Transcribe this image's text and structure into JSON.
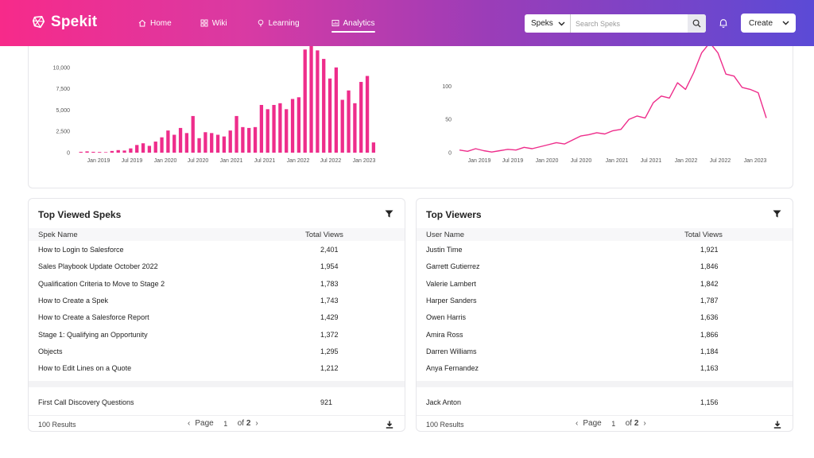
{
  "brand": {
    "name": "Spekit"
  },
  "nav": [
    {
      "label": "Home",
      "icon": "home-icon"
    },
    {
      "label": "Wiki",
      "icon": "grid-icon"
    },
    {
      "label": "Learning",
      "icon": "lightbulb-icon"
    },
    {
      "label": "Analytics",
      "icon": "analytics-icon",
      "active": true
    }
  ],
  "search": {
    "scope": "Speks",
    "placeholder": "Search Speks"
  },
  "create": {
    "label": "Create"
  },
  "colors": {
    "accent": "#ee2d8b",
    "grid": "#eeeeee",
    "axis": "#555555"
  },
  "chart_data": [
    {
      "type": "bar",
      "yticks": [
        "0",
        "2,500",
        "5,000",
        "7,500",
        "10,000"
      ],
      "ylim": [
        0,
        12500
      ],
      "xticks": [
        "Jan 2019",
        "Jul 2019",
        "Jan 2020",
        "Jul 2020",
        "Jan 2021",
        "Jul 2021",
        "Jan 2022",
        "Jul 2022",
        "Jan 2023"
      ],
      "values": [
        100,
        150,
        100,
        80,
        60,
        200,
        300,
        250,
        500,
        900,
        1100,
        800,
        1300,
        1800,
        2600,
        2100,
        2900,
        2300,
        4300,
        1700,
        2400,
        2300,
        2100,
        1900,
        2600,
        4300,
        3000,
        2900,
        3000,
        5600,
        5100,
        5600,
        5800,
        5100,
        6300,
        6500,
        12100,
        12500,
        12000,
        11000,
        8700,
        10000,
        6200,
        7300,
        5800,
        8300,
        9000,
        1200
      ]
    },
    {
      "type": "line",
      "yticks": [
        "0",
        "50",
        "100"
      ],
      "ylim": [
        0,
        160
      ],
      "xticks": [
        "Jan 2019",
        "Jul 2019",
        "Jan 2020",
        "Jul 2020",
        "Jan 2021",
        "Jul 2021",
        "Jan 2022",
        "Jul 2022",
        "Jan 2023"
      ],
      "values": [
        4,
        2,
        6,
        3,
        1,
        3,
        5,
        4,
        8,
        6,
        9,
        12,
        15,
        13,
        19,
        25,
        27,
        30,
        28,
        33,
        35,
        50,
        55,
        52,
        75,
        85,
        82,
        105,
        95,
        120,
        150,
        165,
        150,
        118,
        115,
        98,
        95,
        90,
        52
      ]
    }
  ],
  "top_speks": {
    "title": "Top Viewed Speks",
    "columns": [
      "Spek Name",
      "Total Views"
    ],
    "rows": [
      {
        "name": "How to Login to Salesforce",
        "views": "2,401"
      },
      {
        "name": "Sales Playbook Update October 2022",
        "views": "1,954"
      },
      {
        "name": "Qualification Criteria to Move to Stage 2",
        "views": "1,783"
      },
      {
        "name": "How to Create a Spek",
        "views": "1,743"
      },
      {
        "name": "How to Create a Salesforce Report",
        "views": "1,429"
      },
      {
        "name": "Stage 1: Qualifying an Opportunity",
        "views": "1,372"
      },
      {
        "name": "Objects",
        "views": "1,295"
      },
      {
        "name": "How to Edit Lines on a Quote",
        "views": "1,212"
      }
    ],
    "last_row": {
      "name": "First Call Discovery Questions",
      "views": "921"
    },
    "results": "100 Results",
    "page_label": "Page",
    "page": "1",
    "of_label": "of",
    "pages": "2"
  },
  "top_viewers": {
    "title": "Top Viewers",
    "columns": [
      "User Name",
      "Total Views"
    ],
    "rows": [
      {
        "name": "Justin Time",
        "views": "1,921"
      },
      {
        "name": "Garrett Gutierrez",
        "views": "1,846"
      },
      {
        "name": "Valerie Lambert",
        "views": "1,842"
      },
      {
        "name": "Harper Sanders",
        "views": "1,787"
      },
      {
        "name": "Owen Harris",
        "views": "1,636"
      },
      {
        "name": "Amira Ross",
        "views": "1,866"
      },
      {
        "name": "Darren Williams",
        "views": "1,184"
      },
      {
        "name": "Anya Fernandez",
        "views": "1,163"
      }
    ],
    "last_row": {
      "name": "Jack Anton",
      "views": "1,156"
    },
    "results": "100 Results",
    "page_label": "Page",
    "page": "1",
    "of_label": "of",
    "pages": "2"
  }
}
